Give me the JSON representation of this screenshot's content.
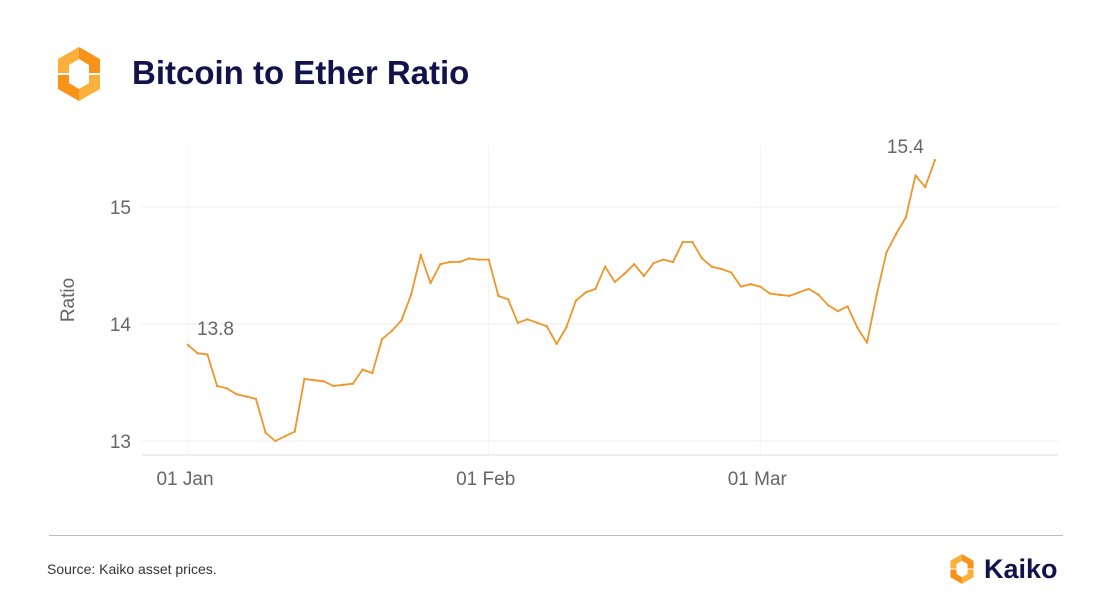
{
  "header": {
    "title": "Bitcoin to Ether Ratio"
  },
  "footer": {
    "source": "Source: Kaiko asset prices.",
    "brand": "Kaiko"
  },
  "colors": {
    "title": "#13124a",
    "line": "#f0952a",
    "logo_orange": "#f7931a",
    "logo_yellow": "#fbb03b"
  },
  "chart_data": {
    "type": "line",
    "title": "Bitcoin to Ether Ratio",
    "ylabel": "Ratio",
    "xlabel": "",
    "ylim": [
      12.95,
      15.6
    ],
    "yticks": [
      13,
      14,
      15
    ],
    "grid": true,
    "xticks": [
      {
        "day": 0,
        "label": "01 Jan"
      },
      {
        "day": 31,
        "label": "01 Feb"
      },
      {
        "day": 59,
        "label": "01 Mar"
      }
    ],
    "annotations": [
      {
        "text": "13.8",
        "day": 0,
        "value": 13.82
      },
      {
        "text": "15.4",
        "day": 77,
        "value": 15.4
      }
    ],
    "series": [
      {
        "points": [
          [
            0,
            13.82
          ],
          [
            1,
            13.75
          ],
          [
            2,
            13.74
          ],
          [
            3,
            13.47
          ],
          [
            4,
            13.45
          ],
          [
            5,
            13.4
          ],
          [
            6,
            13.38
          ],
          [
            7,
            13.36
          ],
          [
            8,
            13.07
          ],
          [
            9,
            13.0
          ],
          [
            10,
            13.04
          ],
          [
            11,
            13.08
          ],
          [
            12,
            13.53
          ],
          [
            13,
            13.52
          ],
          [
            14,
            13.51
          ],
          [
            15,
            13.47
          ],
          [
            16,
            13.48
          ],
          [
            17,
            13.49
          ],
          [
            18,
            13.61
          ],
          [
            19,
            13.58
          ],
          [
            20,
            13.87
          ],
          [
            21,
            13.94
          ],
          [
            22,
            14.03
          ],
          [
            23,
            14.25
          ],
          [
            24,
            14.59
          ],
          [
            25,
            14.35
          ],
          [
            26,
            14.51
          ],
          [
            27,
            14.53
          ],
          [
            28,
            14.53
          ],
          [
            29,
            14.56
          ],
          [
            30,
            14.55
          ],
          [
            31,
            14.55
          ],
          [
            32,
            14.24
          ],
          [
            33,
            14.21
          ],
          [
            34,
            14.01
          ],
          [
            35,
            14.04
          ],
          [
            36,
            14.01
          ],
          [
            37,
            13.98
          ],
          [
            38,
            13.83
          ],
          [
            39,
            13.97
          ],
          [
            40,
            14.2
          ],
          [
            41,
            14.27
          ],
          [
            42,
            14.3
          ],
          [
            43,
            14.49
          ],
          [
            44,
            14.36
          ],
          [
            45,
            14.43
          ],
          [
            46,
            14.51
          ],
          [
            47,
            14.41
          ],
          [
            48,
            14.52
          ],
          [
            49,
            14.55
          ],
          [
            50,
            14.53
          ],
          [
            51,
            14.7
          ],
          [
            52,
            14.7
          ],
          [
            53,
            14.56
          ],
          [
            54,
            14.49
          ],
          [
            55,
            14.47
          ],
          [
            56,
            14.44
          ],
          [
            57,
            14.32
          ],
          [
            58,
            14.34
          ],
          [
            59,
            14.32
          ],
          [
            60,
            14.26
          ],
          [
            61,
            14.25
          ],
          [
            62,
            14.24
          ],
          [
            63,
            14.27
          ],
          [
            64,
            14.3
          ],
          [
            65,
            14.25
          ],
          [
            66,
            14.16
          ],
          [
            67,
            14.11
          ],
          [
            68,
            14.15
          ],
          [
            69,
            13.97
          ],
          [
            70,
            13.84
          ],
          [
            71,
            14.25
          ],
          [
            72,
            14.61
          ],
          [
            73,
            14.77
          ],
          [
            74,
            14.91
          ],
          [
            75,
            15.27
          ],
          [
            76,
            15.17
          ],
          [
            77,
            15.4
          ]
        ]
      }
    ]
  }
}
